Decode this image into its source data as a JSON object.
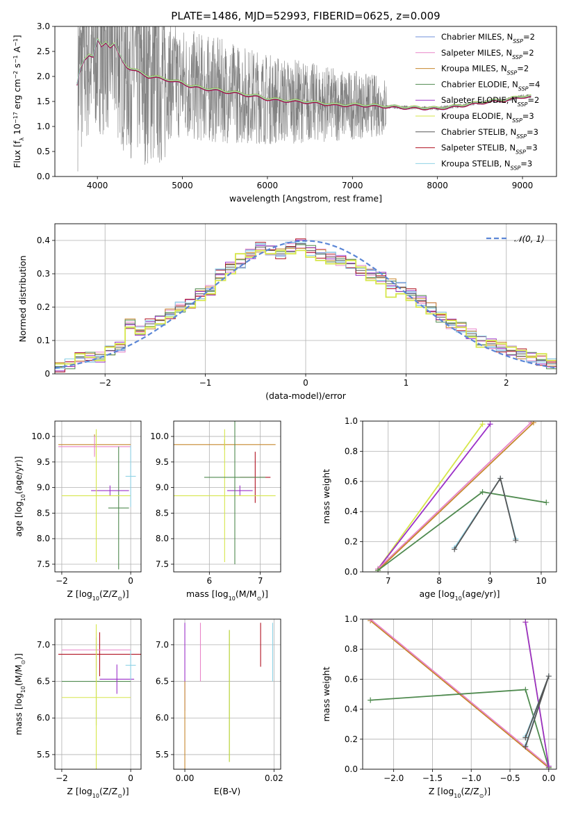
{
  "figure": {
    "title": "PLATE=1486, MJD=52993, FIBERID=0625, z=0.009"
  },
  "colors": {
    "Chabrier MILES": "#6f8fd8",
    "Salpeter MILES": "#e884c8",
    "Kroupa MILES": "#c6862c",
    "Chabrier ELODIE": "#4f8a4f",
    "Salpeter ELODIE": "#9b30c8",
    "Kroupa ELODIE": "#d6e64a",
    "Chabrier STELIB": "#555555",
    "Salpeter STELIB": "#b01020",
    "Kroupa STELIB": "#8fd3e6",
    "data": "#7f7f7f",
    "normal": "#5b86d6"
  },
  "chart_data": [
    {
      "id": "spectrum",
      "type": "line",
      "title": "PLATE=1486, MJD=52993, FIBERID=0625, z=0.009",
      "xlabel": "wavelength [Angstrom, rest frame]",
      "ylabel": "Flux [f_λ 10^-17 erg cm^-2 s^-1 A^-1]",
      "xlim": [
        3500,
        9400
      ],
      "ylim": [
        0,
        3.0
      ],
      "xticks": [
        4000,
        5000,
        6000,
        7000,
        8000,
        9000
      ],
      "yticks": [
        0.0,
        0.5,
        1.0,
        1.5,
        2.0,
        2.5,
        3.0
      ],
      "grid": false,
      "legend": "top-right",
      "legend_entries": [
        "Chabrier MILES, N_SSP=2",
        "Salpeter MILES, N_SSP=2",
        "Kroupa MILES, N_SSP=2",
        "Chabrier ELODIE, N_SSP=4",
        "Salpeter ELODIE, N_SSP=2",
        "Kroupa ELODIE, N_SSP=3",
        "Chabrier STELIB, N_SSP=3",
        "Salpeter STELIB, N_SSP=3",
        "Kroupa STELIB, N_SSP=3"
      ],
      "model_continuum": {
        "x": [
          3760,
          3800,
          3850,
          3900,
          3950,
          4000,
          4050,
          4100,
          4150,
          4200,
          4250,
          4300,
          4350,
          4400,
          4500,
          4600,
          4700,
          4800,
          4900,
          5000,
          5100,
          5200,
          5300,
          5400,
          5500,
          5600,
          5700,
          5800,
          5900,
          6000,
          6200,
          6400,
          6600,
          6800,
          7000,
          7200,
          7400,
          7600,
          7800,
          8000,
          8200,
          8400,
          8600,
          8800,
          9000,
          9100
        ],
        "y": [
          1.82,
          2.15,
          2.35,
          2.45,
          2.4,
          2.72,
          2.6,
          2.7,
          2.6,
          2.65,
          2.45,
          2.3,
          2.2,
          2.15,
          2.08,
          2.0,
          1.98,
          1.95,
          1.9,
          1.88,
          1.8,
          1.78,
          1.75,
          1.73,
          1.7,
          1.68,
          1.65,
          1.62,
          1.6,
          1.55,
          1.52,
          1.5,
          1.47,
          1.43,
          1.43,
          1.42,
          1.4,
          1.38,
          1.37,
          1.36,
          1.4,
          1.45,
          1.5,
          1.53,
          1.6,
          1.6
        ]
      }
    },
    {
      "id": "residuals",
      "type": "line",
      "xlabel": "(data-model)/error",
      "ylabel": "Normed distribution",
      "xlim": [
        -2.5,
        2.5
      ],
      "ylim": [
        0.0,
        0.45
      ],
      "xticks": [
        -2,
        -1,
        0,
        1,
        2
      ],
      "yticks": [
        0.0,
        0.1,
        0.2,
        0.3,
        0.4
      ],
      "grid": true,
      "legend": "top-right",
      "legend_entries": [
        "𝒩(0, 1)"
      ],
      "bin_width": 0.1,
      "series": [
        {
          "name": "Chabrier STELIB",
          "bins_left": -2.5,
          "values": [
            0.02,
            0.03,
            0.05,
            0.05,
            0.05,
            0.07,
            0.08,
            0.15,
            0.13,
            0.15,
            0.16,
            0.18,
            0.2,
            0.21,
            0.24,
            0.25,
            0.3,
            0.32,
            0.33,
            0.36,
            0.38,
            0.37,
            0.36,
            0.38,
            0.39,
            0.37,
            0.36,
            0.35,
            0.34,
            0.33,
            0.31,
            0.3,
            0.29,
            0.27,
            0.26,
            0.24,
            0.22,
            0.2,
            0.17,
            0.15,
            0.14,
            0.12,
            0.1,
            0.09,
            0.08,
            0.07,
            0.06,
            0.05,
            0.04,
            0.03
          ]
        },
        {
          "name": "Kroupa ELODIE",
          "bins_left": -2.5,
          "values": [
            0.03,
            0.03,
            0.06,
            0.05,
            0.04,
            0.08,
            0.09,
            0.14,
            0.12,
            0.14,
            0.15,
            0.17,
            0.19,
            0.2,
            0.22,
            0.24,
            0.28,
            0.3,
            0.36,
            0.35,
            0.37,
            0.36,
            0.37,
            0.36,
            0.37,
            0.35,
            0.34,
            0.33,
            0.33,
            0.34,
            0.32,
            0.28,
            0.27,
            0.23,
            0.24,
            0.22,
            0.2,
            0.18,
            0.18,
            0.16,
            0.14,
            0.11,
            0.08,
            0.1,
            0.09,
            0.08,
            0.07,
            0.05,
            0.06,
            0.04
          ]
        }
      ],
      "reference": {
        "name": "𝒩(0, 1)",
        "mean": 0,
        "sigma": 1
      }
    },
    {
      "id": "age-vs-Z",
      "type": "scatter",
      "xlabel": "Z [log10(Z/Z⊙)]",
      "ylabel": "age [log10(age/yr)]",
      "xlim": [
        -2.2,
        0.3
      ],
      "ylim": [
        7.35,
        10.3
      ],
      "xticks": [
        -2,
        0
      ],
      "yticks": [
        7.5,
        8.0,
        8.5,
        9.0,
        9.5,
        10.0
      ],
      "grid": true,
      "points": [
        {
          "model": "Kroupa MILES",
          "x": -1.05,
          "xerr": 1.05,
          "y": 9.84,
          "yerr": 0.2
        },
        {
          "model": "Salpeter MILES",
          "x": -1.05,
          "xerr": 1.05,
          "y": 9.8,
          "yerr": 0.2
        },
        {
          "model": "Chabrier ELODIE",
          "x": -0.35,
          "xerr": 0.3,
          "y": 8.6,
          "yerr": 1.2
        },
        {
          "model": "Salpeter ELODIE",
          "x": -0.6,
          "xerr": 0.55,
          "y": 8.94,
          "yerr": 0.1
        },
        {
          "model": "Kroupa ELODIE",
          "x": -1.0,
          "xerr": 1.0,
          "y": 8.84,
          "yerr": 1.3
        },
        {
          "model": "Kroupa STELIB",
          "x": 0.0,
          "xerr": 0.15,
          "y": 9.22,
          "yerr": 0.6
        }
      ]
    },
    {
      "id": "age-vs-mass",
      "type": "scatter",
      "xlabel": "mass [log10(M/M⊙)]",
      "ylabel": "",
      "xlim": [
        5.3,
        7.4
      ],
      "ylim": [
        7.35,
        10.3
      ],
      "xticks": [
        6,
        7
      ],
      "yticks": [
        7.5,
        8.0,
        8.5,
        9.0,
        9.5,
        10.0
      ],
      "grid": true,
      "points": [
        {
          "model": "Kroupa MILES",
          "x": 6.3,
          "xerr": 1.0,
          "y": 9.84,
          "yerr": 0.1
        },
        {
          "model": "Salpeter STELIB",
          "x": 6.9,
          "xerr": 0.3,
          "y": 9.2,
          "yerr": 0.5
        },
        {
          "model": "Salpeter ELODIE",
          "x": 6.6,
          "xerr": 0.25,
          "y": 8.94,
          "yerr": 0.1
        },
        {
          "model": "Kroupa ELODIE",
          "x": 6.3,
          "xerr": 1.0,
          "y": 8.84,
          "yerr": 1.3
        },
        {
          "model": "Chabrier ELODIE",
          "x": 6.5,
          "xerr": 0.6,
          "y": 9.2,
          "yerr": 1.7
        }
      ]
    },
    {
      "id": "massweight-vs-age",
      "type": "line",
      "xlabel": "age [log10(age/yr)]",
      "ylabel": "mass weight",
      "xlim": [
        6.5,
        10.3
      ],
      "ylim": [
        0.0,
        1.0
      ],
      "xticks": [
        7,
        8,
        9,
        10
      ],
      "yticks": [
        0.0,
        0.2,
        0.4,
        0.6,
        0.8,
        1.0
      ],
      "grid": true,
      "series": [
        {
          "name": "Kroupa ELODIE",
          "x": [
            6.8,
            8.85
          ],
          "y": [
            0.02,
            0.98
          ]
        },
        {
          "name": "Salpeter ELODIE",
          "x": [
            6.8,
            9.0
          ],
          "y": [
            0.02,
            0.98
          ]
        },
        {
          "name": "Salpeter MILES",
          "x": [
            6.8,
            9.8
          ],
          "y": [
            0.02,
            0.99
          ]
        },
        {
          "name": "Kroupa MILES",
          "x": [
            6.8,
            9.85
          ],
          "y": [
            0.01,
            0.99
          ]
        },
        {
          "name": "Chabrier ELODIE",
          "x": [
            6.8,
            8.85,
            10.1
          ],
          "y": [
            0.01,
            0.53,
            0.46
          ]
        },
        {
          "name": "Kroupa STELIB",
          "x": [
            8.3,
            9.2,
            9.5
          ],
          "y": [
            0.16,
            0.62,
            0.22
          ]
        },
        {
          "name": "Chabrier STELIB",
          "x": [
            8.3,
            9.2,
            9.5
          ],
          "y": [
            0.15,
            0.62,
            0.21
          ]
        }
      ]
    },
    {
      "id": "mass-vs-Z",
      "type": "scatter",
      "xlabel": "Z [log10(Z/Z⊙)]",
      "ylabel": "mass [log10(M/M⊙)]",
      "xlim": [
        -2.2,
        0.3
      ],
      "ylim": [
        5.3,
        7.35
      ],
      "xticks": [
        -2,
        0
      ],
      "yticks": [
        5.5,
        6.0,
        6.5,
        7.0
      ],
      "grid": true,
      "points": [
        {
          "model": "Salpeter STELIB",
          "x": -0.9,
          "xerr": 1.2,
          "y": 6.87,
          "yerr": 0.3
        },
        {
          "model": "Salpeter MILES",
          "x": -1.0,
          "xerr": 1.0,
          "y": 6.93,
          "yerr": 0.25
        },
        {
          "model": "Chabrier ELODIE",
          "x": -1.0,
          "xerr": 1.0,
          "y": 6.5,
          "yerr": 0.6
        },
        {
          "model": "Kroupa ELODIE",
          "x": -1.0,
          "xerr": 1.0,
          "y": 6.28,
          "yerr": 1.0
        },
        {
          "model": "Salpeter ELODIE",
          "x": -0.4,
          "xerr": 0.5,
          "y": 6.53,
          "yerr": 0.2
        },
        {
          "model": "Kroupa STELIB",
          "x": 0.0,
          "xerr": 0.15,
          "y": 6.72,
          "yerr": 0.2
        }
      ]
    },
    {
      "id": "mass-vs-EBV",
      "type": "scatter",
      "xlabel": "E(B-V)",
      "ylabel": "",
      "xlim": [
        -0.0025,
        0.0215
      ],
      "ylim": [
        5.3,
        7.35
      ],
      "xticks": [
        0.0,
        0.02
      ],
      "xtick_labels": [
        "0.00",
        "0.02"
      ],
      "yticks": [
        5.5,
        6.0,
        6.5,
        7.0
      ],
      "grid": true,
      "points": [
        {
          "model": "Salpeter ELODIE",
          "x": 0.0,
          "y": 6.7,
          "yerr": 0.6
        },
        {
          "model": "Kroupa MILES",
          "x": 0.0,
          "y": 5.9,
          "yerr": 0.6
        },
        {
          "model": "Salpeter MILES",
          "x": 0.0035,
          "y": 6.9,
          "yerr": 0.4
        },
        {
          "model": "Chabrier ELODIE",
          "x": 0.01,
          "y": 6.3,
          "yerr": 0.9
        },
        {
          "model": "Kroupa ELODIE",
          "x": 0.01,
          "y": 6.3,
          "yerr": 0.9
        },
        {
          "model": "Salpeter STELIB",
          "x": 0.017,
          "y": 7.0,
          "yerr": 0.3
        },
        {
          "model": "Kroupa STELIB",
          "x": 0.0197,
          "y": 6.9,
          "yerr": 0.4
        }
      ]
    },
    {
      "id": "massweight-vs-Z",
      "type": "line",
      "xlabel": "Z [log10(Z/Z⊙)]",
      "ylabel": "mass weight",
      "xlim": [
        -2.4,
        0.1
      ],
      "ylim": [
        0.0,
        1.0
      ],
      "xticks": [
        -2.0,
        -1.5,
        -1.0,
        -0.5,
        0.0
      ],
      "xtick_labels": [
        "−2.0",
        "−1.5",
        "−1.0",
        "−0.5",
        "0.0"
      ],
      "yticks": [
        0.0,
        0.2,
        0.4,
        0.6,
        0.8,
        1.0
      ],
      "grid": true,
      "series": [
        {
          "name": "Kroupa MILES",
          "x": [
            -2.3,
            0.0
          ],
          "y": [
            0.99,
            0.01
          ]
        },
        {
          "name": "Salpeter MILES",
          "x": [
            -2.3,
            0.0
          ],
          "y": [
            1.0,
            0.02
          ]
        },
        {
          "name": "Chabrier ELODIE",
          "x": [
            -2.3,
            -0.3,
            0.0
          ],
          "y": [
            0.46,
            0.53,
            0.01
          ]
        },
        {
          "name": "Kroupa ELODIE",
          "x": [
            -0.3,
            0.0
          ],
          "y": [
            0.98,
            0.02
          ]
        },
        {
          "name": "Salpeter ELODIE",
          "x": [
            -0.3,
            0.0
          ],
          "y": [
            0.98,
            0.02
          ]
        },
        {
          "name": "Kroupa STELIB",
          "x": [
            -0.3,
            0.0,
            -0.3
          ],
          "y": [
            0.16,
            0.62,
            0.22
          ]
        },
        {
          "name": "Chabrier STELIB",
          "x": [
            -0.3,
            0.0,
            -0.3
          ],
          "y": [
            0.15,
            0.62,
            0.21
          ]
        }
      ]
    }
  ]
}
